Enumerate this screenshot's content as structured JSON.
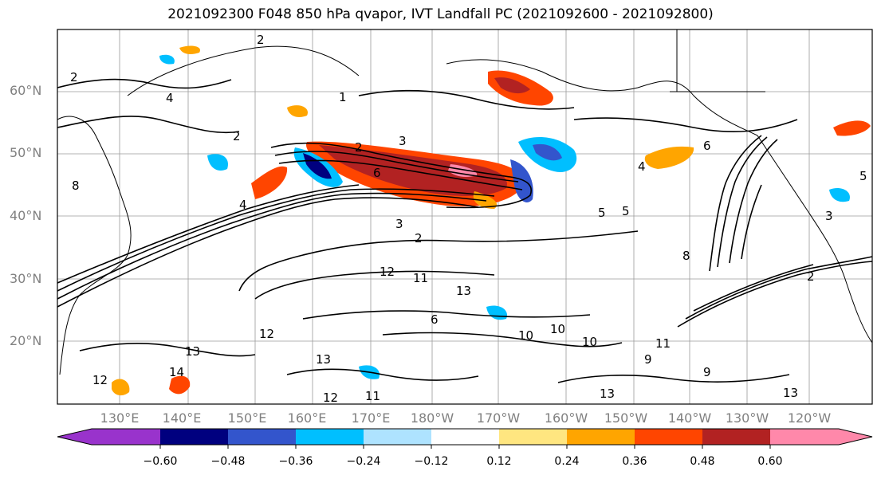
{
  "title": "2021092300 F048 850 hPa qvapor, IVT Landfall PC (2021092600 - 2021092800)",
  "map": {
    "lat_labels": [
      "60°N",
      "50°N",
      "40°N",
      "30°N",
      "20°N"
    ],
    "lon_labels": [
      "130°E",
      "140°E",
      "150°E",
      "160°E",
      "170°E",
      "180°W",
      "170°W",
      "160°W",
      "150°W",
      "140°W",
      "130°W",
      "120°W"
    ],
    "contour_labels": [
      "2",
      "1",
      "4",
      "2",
      "8",
      "3",
      "2",
      "6",
      "4",
      "2",
      "3",
      "2",
      "5",
      "4",
      "6",
      "3",
      "2",
      "12",
      "11",
      "10",
      "12",
      "13",
      "13",
      "14",
      "12",
      "13",
      "12",
      "11",
      "6",
      "10",
      "10",
      "9",
      "11",
      "8",
      "9",
      "13",
      "13",
      "5",
      "5"
    ]
  },
  "colorbar": {
    "ticks": [
      "−0.60",
      "−0.48",
      "−0.36",
      "−0.24",
      "−0.12",
      "0.12",
      "0.24",
      "0.36",
      "0.48",
      "0.60"
    ],
    "colors": [
      "#9933cc",
      "#00007f",
      "#3355cc",
      "#00bfff",
      "#aee3ff",
      "#ffffff",
      "#ffe680",
      "#ffa500",
      "#ff4500",
      "#b22222",
      "#ff88aa"
    ]
  }
}
